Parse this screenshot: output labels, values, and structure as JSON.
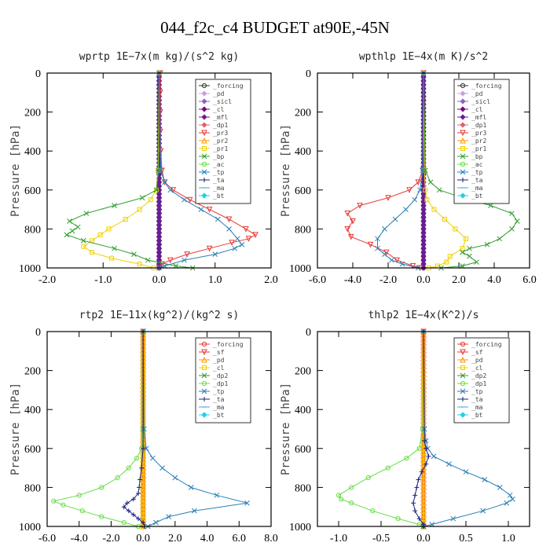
{
  "figure": {
    "title": "044_f2c_c4  BUDGET at90E,-45N"
  },
  "chart_data": [
    {
      "type": "line",
      "title": "wprtp  1E−7x(m kg)/(s^2 kg)",
      "xlabel": "",
      "ylabel": "Pressure [hPa]",
      "xlim": [
        -2.0,
        2.0
      ],
      "ylim": [
        1000,
        0
      ],
      "xticks": [
        "-2.0",
        "-1.0",
        "0.0",
        "1.0",
        "2.0"
      ],
      "xtick_values": [
        -2,
        -1,
        0,
        1,
        2
      ],
      "yticks": [
        "0",
        "200",
        "400",
        "600",
        "800",
        "1000"
      ],
      "ytick_values": [
        0,
        200,
        400,
        600,
        800,
        1000
      ],
      "legend_position": "top-right",
      "zero_series": [
        {
          "name": "_forcing",
          "color": "#333333",
          "marker": "circle-open"
        },
        {
          "name": "_pd",
          "color": "#c8a0e0",
          "marker": "diamond"
        },
        {
          "name": "_sicl",
          "color": "#9060c0",
          "marker": "diamond"
        },
        {
          "name": "_cl",
          "color": "#800080",
          "marker": "diamond"
        },
        {
          "name": "_mfl",
          "color": "#6a1b9a",
          "marker": "diamond"
        }
      ],
      "series": [
        {
          "name": "_dp1",
          "color": "#e06070",
          "marker": "diamond",
          "y": [],
          "x": []
        },
        {
          "name": "_pr3",
          "color": "#e53935",
          "marker": "triangle-down",
          "y": [
            0,
            100,
            200,
            300,
            400,
            500,
            560,
            600,
            650,
            700,
            750,
            800,
            830,
            850,
            870,
            900,
            930,
            960,
            980,
            1000
          ],
          "x": [
            0.02,
            0.02,
            0.02,
            0.02,
            0.03,
            0.05,
            0.1,
            0.25,
            0.55,
            0.9,
            1.25,
            1.55,
            1.72,
            1.6,
            1.3,
            0.9,
            0.5,
            0.2,
            0.05,
            0.0
          ]
        },
        {
          "name": "_pr2",
          "color": "#ff9800",
          "marker": "triangle",
          "y": [],
          "x": []
        },
        {
          "name": "_pr1",
          "color": "#f2d000",
          "marker": "square-open",
          "y": [
            0,
            500,
            600,
            650,
            700,
            750,
            800,
            830,
            860,
            890,
            920,
            950,
            980,
            1000
          ],
          "x": [
            0,
            -0.02,
            -0.05,
            -0.15,
            -0.35,
            -0.6,
            -0.9,
            -1.05,
            -1.2,
            -1.35,
            -1.2,
            -0.85,
            -0.35,
            -0.1
          ]
        },
        {
          "name": "_bp",
          "color": "#2e9d2e",
          "marker": "x",
          "y": [
            0,
            500,
            600,
            640,
            680,
            720,
            760,
            790,
            810,
            830,
            860,
            900,
            930,
            960,
            990,
            1000
          ],
          "x": [
            0,
            -0.01,
            -0.05,
            -0.3,
            -0.8,
            -1.3,
            -1.6,
            -1.45,
            -1.55,
            -1.65,
            -1.35,
            -0.8,
            -0.45,
            -0.2,
            0.3,
            0.6
          ]
        },
        {
          "name": "_ac",
          "color": "#66dd44",
          "marker": "circle-open",
          "y": [],
          "x": []
        },
        {
          "name": "_tp",
          "color": "#2a7fb5",
          "marker": "x",
          "y": [
            0,
            500,
            560,
            600,
            650,
            700,
            750,
            800,
            850,
            880,
            900,
            930,
            960,
            990,
            1000
          ],
          "x": [
            0,
            0.03,
            0.1,
            0.2,
            0.45,
            0.75,
            1.05,
            1.25,
            1.4,
            1.48,
            1.35,
            1.0,
            0.45,
            0.1,
            0.0
          ]
        },
        {
          "name": "_ta",
          "color": "#1a237e",
          "marker": "plus",
          "y": [],
          "x": []
        },
        {
          "name": "_ma",
          "color": "#48a8d8",
          "marker": "dash",
          "y": [],
          "x": []
        },
        {
          "name": "_bt",
          "color": "#22d0e8",
          "marker": "diamond-filled",
          "y": [],
          "x": []
        }
      ]
    },
    {
      "type": "line",
      "title": "wpthlp  1E−4x(m K)/s^2",
      "xlabel": "",
      "ylabel": "Pressure [hPa]",
      "xlim": [
        -6.0,
        6.0
      ],
      "ylim": [
        1000,
        0
      ],
      "xticks": [
        "-6.0",
        "-4.0",
        "-2.0",
        "0.0",
        "2.0",
        "4.0",
        "6.0"
      ],
      "xtick_values": [
        -6,
        -4,
        -2,
        0,
        2,
        4,
        6
      ],
      "yticks": [
        "0",
        "200",
        "400",
        "600",
        "800",
        "1000"
      ],
      "ytick_values": [
        0,
        200,
        400,
        600,
        800,
        1000
      ],
      "legend_position": "top-right",
      "zero_series": [
        {
          "name": "_forcing",
          "color": "#333333",
          "marker": "circle-open"
        },
        {
          "name": "_pd",
          "color": "#c8a0e0",
          "marker": "diamond"
        },
        {
          "name": "_sicl",
          "color": "#9060c0",
          "marker": "diamond"
        },
        {
          "name": "_cl",
          "color": "#800080",
          "marker": "diamond"
        },
        {
          "name": "_mfl",
          "color": "#6a1b9a",
          "marker": "diamond"
        }
      ],
      "series": [
        {
          "name": "_dp1",
          "color": "#e06070",
          "marker": "diamond",
          "y": [],
          "x": []
        },
        {
          "name": "_pr3",
          "color": "#e53935",
          "marker": "triangle-down",
          "y": [
            0,
            500,
            560,
            600,
            640,
            680,
            720,
            760,
            800,
            840,
            880,
            920,
            960,
            990,
            1000
          ],
          "x": [
            0,
            -0.05,
            -0.3,
            -0.8,
            -2.0,
            -3.6,
            -4.3,
            -4.0,
            -4.3,
            -4.1,
            -3.0,
            -2.1,
            -1.5,
            -0.6,
            -0.2
          ]
        },
        {
          "name": "_pr2",
          "color": "#ff9800",
          "marker": "triangle",
          "y": [],
          "x": []
        },
        {
          "name": "_pr1",
          "color": "#f2d000",
          "marker": "square-open",
          "y": [
            0,
            500,
            600,
            650,
            700,
            750,
            800,
            850,
            900,
            940,
            970,
            990,
            1000
          ],
          "x": [
            0,
            0.05,
            0.1,
            0.2,
            0.6,
            1.2,
            1.8,
            2.4,
            2.2,
            1.5,
            1.3,
            0.8,
            0.3
          ]
        },
        {
          "name": "_bp",
          "color": "#2e9d2e",
          "marker": "x",
          "y": [
            0,
            500,
            560,
            600,
            640,
            680,
            720,
            760,
            800,
            850,
            880,
            900,
            920,
            940,
            970,
            990,
            1000
          ],
          "x": [
            0,
            0.1,
            0.4,
            0.9,
            2.2,
            3.8,
            5.0,
            5.3,
            5.0,
            4.3,
            3.6,
            2.6,
            2.2,
            2.6,
            3.0,
            2.2,
            1.0
          ]
        },
        {
          "name": "_ac",
          "color": "#66dd44",
          "marker": "circle-open",
          "y": [],
          "x": []
        },
        {
          "name": "_tp",
          "color": "#2a7fb5",
          "marker": "x",
          "y": [
            0,
            500,
            600,
            650,
            700,
            750,
            800,
            850,
            900,
            930,
            960,
            980,
            1000
          ],
          "x": [
            0,
            -0.05,
            -0.2,
            -0.5,
            -1.0,
            -1.6,
            -2.2,
            -2.6,
            -2.6,
            -2.2,
            -1.8,
            -1.2,
            -0.3
          ]
        },
        {
          "name": "_ta",
          "color": "#1a237e",
          "marker": "plus",
          "y": [],
          "x": []
        },
        {
          "name": "_ma",
          "color": "#48a8d8",
          "marker": "dash",
          "y": [],
          "x": []
        },
        {
          "name": "_bt",
          "color": "#22d0e8",
          "marker": "diamond-filled",
          "y": [],
          "x": []
        }
      ]
    },
    {
      "type": "line",
      "title": "rtp2  1E−11x(kg^2)/(kg^2 s)",
      "xlabel": "",
      "ylabel": "Pressure [hPa]",
      "xlim": [
        -6.0,
        8.0
      ],
      "ylim": [
        1000,
        0
      ],
      "xticks": [
        "-6.0",
        "-4.0",
        "-2.0",
        "0.0",
        "2.0",
        "4.0",
        "6.0",
        "8.0"
      ],
      "xtick_values": [
        -6,
        -4,
        -2,
        0,
        2,
        4,
        6,
        8
      ],
      "yticks": [
        "0",
        "200",
        "400",
        "600",
        "800",
        "1000"
      ],
      "ytick_values": [
        0,
        200,
        400,
        600,
        800,
        1000
      ],
      "legend_position": "top-right",
      "zero_series": [
        {
          "name": "_forcing",
          "color": "#e53935",
          "marker": "circle-open"
        },
        {
          "name": "_sf",
          "color": "#e53935",
          "marker": "triangle-down"
        },
        {
          "name": "_pd",
          "color": "#ff9800",
          "marker": "triangle"
        },
        {
          "name": "_cl",
          "color": "#f2d000",
          "marker": "square-open"
        }
      ],
      "series": [
        {
          "name": "_dp2",
          "color": "#2e9d2e",
          "marker": "x",
          "y": [],
          "x": []
        },
        {
          "name": "_dp1",
          "color": "#66dd44",
          "marker": "circle-open",
          "y": [
            0,
            500,
            600,
            650,
            700,
            750,
            800,
            840,
            870,
            890,
            920,
            950,
            980,
            1000
          ],
          "x": [
            0,
            -0.02,
            -0.1,
            -0.4,
            -0.9,
            -1.6,
            -2.6,
            -4.0,
            -5.6,
            -5.0,
            -3.8,
            -2.6,
            -1.2,
            -0.3
          ]
        },
        {
          "name": "_tp",
          "color": "#2a7fb5",
          "marker": "x",
          "y": [
            0,
            500,
            600,
            650,
            700,
            750,
            800,
            840,
            880,
            920,
            950,
            980,
            1000
          ],
          "x": [
            0,
            0.05,
            0.2,
            0.6,
            1.2,
            2.0,
            3.0,
            4.6,
            6.5,
            3.2,
            1.6,
            0.8,
            0.3
          ]
        },
        {
          "name": "_ta",
          "color": "#1a237e",
          "marker": "plus",
          "y": [
            0,
            600,
            700,
            760,
            800,
            830,
            860,
            880,
            900,
            920,
            940,
            960,
            980,
            1000
          ],
          "x": [
            0,
            0,
            -0.1,
            -0.2,
            -0.25,
            -0.3,
            -0.6,
            -1.0,
            -1.2,
            -0.9,
            -0.6,
            -0.3,
            0.0,
            0.1
          ]
        },
        {
          "name": "_ma",
          "color": "#48a8d8",
          "marker": "dash",
          "y": [],
          "x": []
        },
        {
          "name": "_bt",
          "color": "#22d0e8",
          "marker": "diamond-filled",
          "y": [],
          "x": []
        }
      ]
    },
    {
      "type": "line",
      "title": "thlp2  1E−4x(K^2)/s",
      "xlabel": "",
      "ylabel": "Pressure [hPa]",
      "xlim": [
        -1.25,
        1.25
      ],
      "ylim": [
        1000,
        0
      ],
      "xticks": [
        "-1.0",
        "-0.5",
        "0.0",
        "0.5",
        "1.0"
      ],
      "xtick_values": [
        -1,
        -0.5,
        0,
        0.5,
        1
      ],
      "yticks": [
        "0",
        "200",
        "400",
        "600",
        "800",
        "1000"
      ],
      "ytick_values": [
        0,
        200,
        400,
        600,
        800,
        1000
      ],
      "legend_position": "top-right",
      "zero_series": [
        {
          "name": "_forcing",
          "color": "#e53935",
          "marker": "circle-open"
        },
        {
          "name": "_sf",
          "color": "#e53935",
          "marker": "triangle-down"
        },
        {
          "name": "_pd",
          "color": "#ff9800",
          "marker": "triangle"
        },
        {
          "name": "_cl",
          "color": "#f2d000",
          "marker": "square-open"
        }
      ],
      "series": [
        {
          "name": "_dp2",
          "color": "#2e9d2e",
          "marker": "x",
          "y": [],
          "x": []
        },
        {
          "name": "_dp1",
          "color": "#66dd44",
          "marker": "circle-open",
          "y": [
            0,
            500,
            600,
            650,
            700,
            750,
            800,
            840,
            860,
            880,
            920,
            960,
            990,
            1000
          ],
          "x": [
            0,
            -0.01,
            -0.05,
            -0.2,
            -0.42,
            -0.65,
            -0.85,
            -1.0,
            -0.97,
            -0.85,
            -0.6,
            -0.3,
            -0.05,
            0.0
          ]
        },
        {
          "name": "_tp",
          "color": "#2a7fb5",
          "marker": "x",
          "y": [
            0,
            500,
            560,
            600,
            640,
            680,
            720,
            760,
            800,
            840,
            860,
            880,
            920,
            960,
            990,
            1000
          ],
          "x": [
            0,
            0.01,
            0.03,
            0.05,
            0.12,
            0.3,
            0.5,
            0.72,
            0.9,
            1.02,
            1.05,
            0.98,
            0.7,
            0.35,
            0.1,
            0.0
          ]
        },
        {
          "name": "_ta",
          "color": "#1a237e",
          "marker": "plus",
          "y": [
            0,
            560,
            600,
            640,
            680,
            720,
            760,
            800,
            840,
            880,
            920,
            960,
            990,
            1000
          ],
          "x": [
            0,
            0.01,
            0.03,
            0.06,
            0.03,
            -0.02,
            -0.06,
            -0.08,
            -0.1,
            -0.12,
            -0.1,
            -0.05,
            0.0,
            0.0
          ]
        },
        {
          "name": "_ma",
          "color": "#48a8d8",
          "marker": "dash",
          "y": [],
          "x": []
        },
        {
          "name": "_bt",
          "color": "#22d0e8",
          "marker": "diamond-filled",
          "y": [],
          "x": []
        }
      ]
    }
  ]
}
